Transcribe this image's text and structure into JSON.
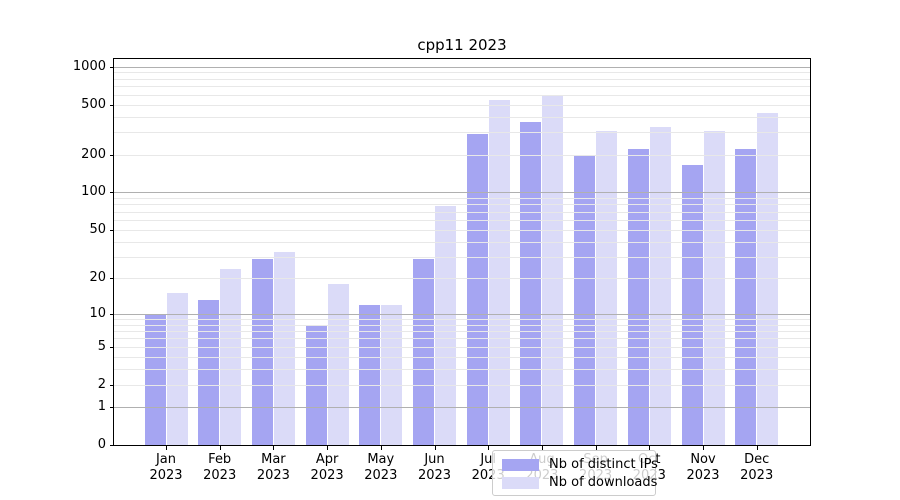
{
  "title": "cpp11 2023",
  "colors": {
    "ips": "#a5a5f2",
    "downloads": "#dbdbf8",
    "grid_major": "#b0b0b0",
    "grid_minor": "#e8e8e8",
    "spine": "#000000",
    "legend_border": "#cccccc"
  },
  "legend": {
    "items": [
      {
        "label": "Nb of distinct IPs",
        "color_key": "ips"
      },
      {
        "label": "Nb of downloads",
        "color_key": "downloads"
      }
    ]
  },
  "chart_data": {
    "type": "bar",
    "title": "cpp11 2023",
    "categories": [
      "Jan 2023",
      "Feb 2023",
      "Mar 2023",
      "Apr 2023",
      "May 2023",
      "Jun 2023",
      "Jul 2023",
      "Aug 2023",
      "Sep 2023",
      "Oct 2023",
      "Nov 2023",
      "Dec 2023"
    ],
    "series": [
      {
        "name": "Nb of distinct IPs",
        "values": [
          10,
          13,
          29,
          8,
          12,
          29,
          290,
          365,
          195,
          220,
          165,
          220
        ]
      },
      {
        "name": "Nb of downloads",
        "values": [
          15,
          24,
          33,
          18,
          12,
          78,
          540,
          580,
          310,
          330,
          310,
          430
        ]
      }
    ],
    "xlabel": "",
    "ylabel": "",
    "yscale": "log1p",
    "y_ticks": [
      0,
      1,
      2,
      5,
      10,
      20,
      50,
      100,
      200,
      500,
      1000
    ],
    "ylim": [
      0,
      1000
    ],
    "grid": "on",
    "legend_position": "lower center inside"
  }
}
